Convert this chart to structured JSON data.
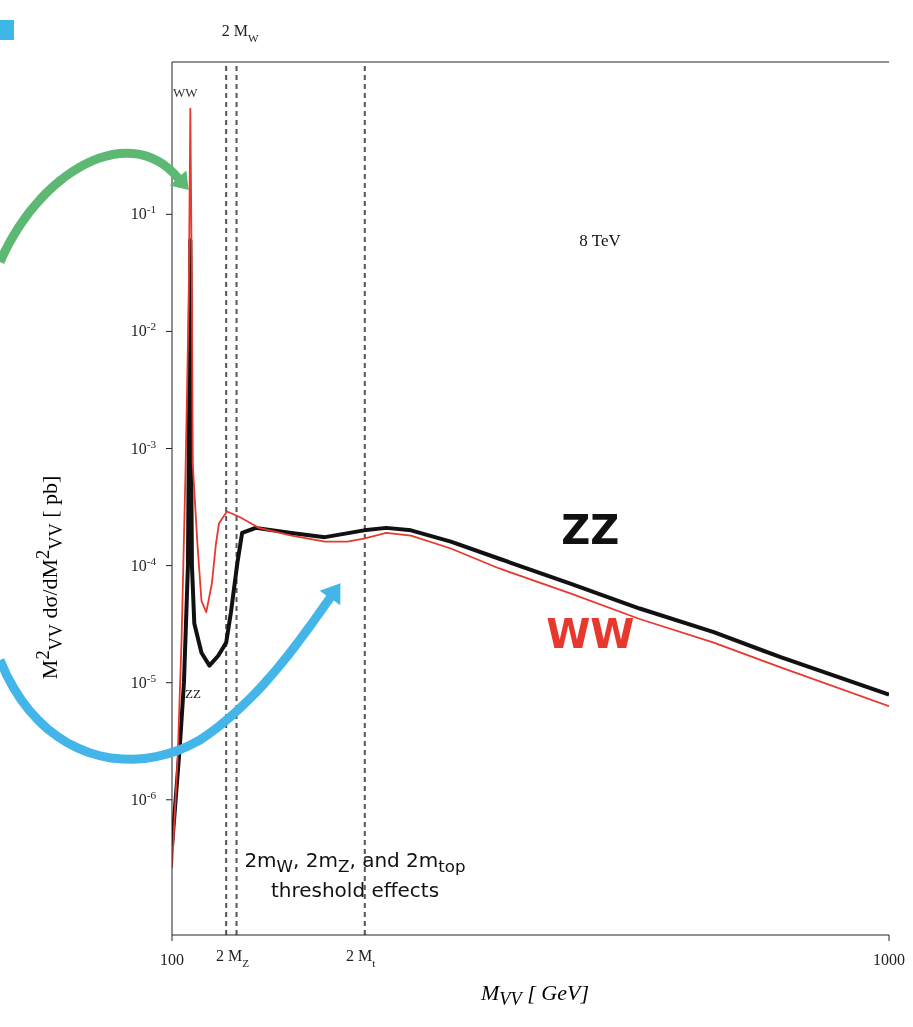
{
  "chart_data": {
    "type": "line",
    "xlabel": "M$_{VV}$ [ GeV]",
    "ylabel": "M$^{2}$$_{VV}$ dσ/dM$^{2}$$_{VV}$ [ pb]",
    "log": "y",
    "marker": "none",
    "line_style": "solid",
    "xlim": [
      100,
      1000
    ],
    "xticks": [
      100,
      1000
    ],
    "ylim": [
      7e-08,
      2
    ],
    "yticks": [
      {
        "value": 1e-06,
        "label": "10$^{-6}$"
      },
      {
        "value": 1e-05,
        "label": "10$^{-5}$"
      },
      {
        "value": 0.0001,
        "label": "10$^{-4}$"
      },
      {
        "value": 0.001,
        "label": "10$^{-3}$"
      },
      {
        "value": 0.01,
        "label": "10$^{-2}$"
      },
      {
        "value": 0.1,
        "label": "10$^{-1}$"
      }
    ],
    "ref_lines": [
      {
        "axis": "x",
        "value": 168,
        "label": "2 M$_{W}$",
        "color": "#555555",
        "line_style": "dashed"
      },
      {
        "axis": "x",
        "value": 181,
        "label": "2 M$_{Z}$",
        "color": "#555555",
        "line_style": "dashed"
      },
      {
        "axis": "x",
        "value": 342,
        "label": "2 M$_{t}$",
        "color": "#555555",
        "line_style": "dashed"
      }
    ],
    "series": [
      {
        "name": "ZZ",
        "color": "#111111",
        "x": [
          100,
          110,
          115,
          120,
          123,
          124,
          125,
          128,
          137,
          147,
          158,
          168,
          174,
          182,
          188,
          205,
          250,
          292,
          341,
          369,
          400,
          450,
          510,
          600,
          687,
          780,
          864,
          1000
        ],
        "values": [
          4e-07,
          3e-06,
          1e-05,
          0.0001,
          0.06,
          0.001,
          0.0001,
          3.2e-05,
          1.8e-05,
          1.4e-05,
          1.7e-05,
          2.2e-05,
          4e-05,
          0.000105,
          0.00019,
          0.00021,
          0.00019,
          0.000175,
          0.0002,
          0.00021,
          0.0002,
          0.00016,
          0.000115,
          7e-05,
          4.3e-05,
          2.7e-05,
          1.65e-05,
          7.9e-06
        ]
      },
      {
        "name": "WW",
        "color": "#e8382e",
        "x": [
          100,
          107,
          112,
          117,
          121,
          123,
          125,
          126,
          132,
          137,
          143,
          150,
          155,
          159,
          169,
          185,
          209,
          250,
          292,
          320,
          341,
          369,
          400,
          450,
          510,
          600,
          687,
          780,
          864,
          1000
        ],
        "values": [
          2.6e-07,
          2.2e-06,
          2.3e-05,
          0.00065,
          0.018,
          0.8,
          0.02,
          0.00074,
          0.00015,
          5e-05,
          4e-05,
          7e-05,
          0.00015,
          0.00023,
          0.00029,
          0.00026,
          0.00021,
          0.00018,
          0.00016,
          0.00016,
          0.00017,
          0.00019,
          0.00018,
          0.00014,
          9.5e-05,
          5.8e-05,
          3.5e-05,
          2.2e-05,
          1.35e-05,
          6.3e-06
        ]
      }
    ],
    "annotations": [
      {
        "text": "WW",
        "x": 123,
        "y": 0.8
      },
      "ZZ",
      "8 TeV",
      "2m$_{W}$, 2m$_{Z}$, and 2m$_{top}$ threshold effects"
    ]
  }
}
